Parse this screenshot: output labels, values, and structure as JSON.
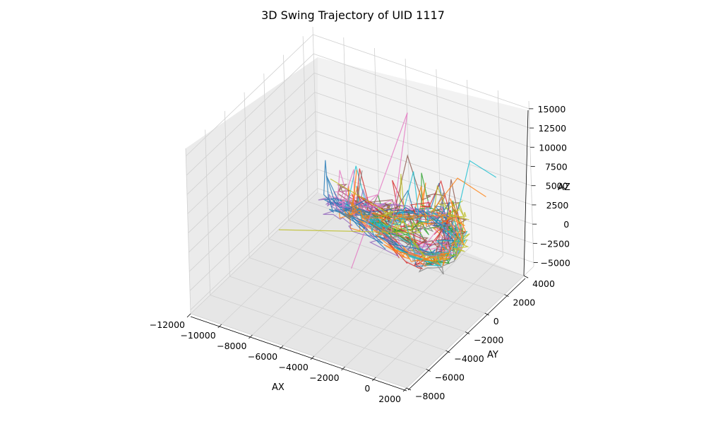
{
  "chart_data": {
    "type": "line",
    "projection": "3d",
    "title": "3D Swing Trajectory of UID 1117",
    "xlabel": "AX",
    "ylabel": "AY",
    "zlabel": "AZ",
    "xlim": [
      -12000,
      2000
    ],
    "ylim": [
      -8000,
      5000
    ],
    "zlim": [
      -5500,
      16000
    ],
    "x_ticks": [
      "−12000",
      "−10000",
      "−8000",
      "−6000",
      "−4000",
      "−2000",
      "0",
      "2000"
    ],
    "y_ticks": [
      "−8000",
      "−6000",
      "−4000",
      "−2000",
      "0",
      "2000",
      "4000"
    ],
    "z_ticks": [
      "−5000",
      "−2500",
      "0",
      "2500",
      "5000",
      "7500",
      "10000",
      "12500",
      "15000"
    ],
    "grid": true,
    "legend": "none",
    "series_colors": [
      "#1f77b4",
      "#ff7f0e",
      "#2ca02c",
      "#d62728",
      "#9467bd",
      "#8c564b",
      "#e377c2",
      "#7f7f7f",
      "#bcbd22",
      "#17becf"
    ]
  }
}
